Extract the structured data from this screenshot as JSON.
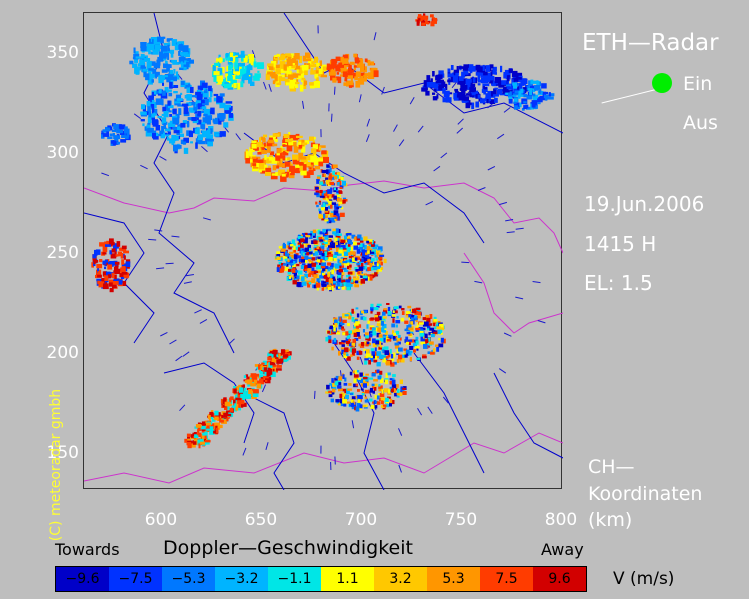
{
  "radar": {
    "title": "ETH—Radar",
    "status_on": "Ein",
    "status_off": "Aus",
    "date": "19.Jun.2006",
    "time": "1415 H",
    "elevation": "EL: 1.5",
    "coord_line1": "CH—",
    "coord_line2": "Koordinaten",
    "coord_line3": "(km)",
    "copyright": "(C) meteoradar gmbh",
    "status_dot_color": "#00ee00"
  },
  "axes": {
    "y_ticks": [
      "350",
      "300",
      "250",
      "200",
      "150"
    ],
    "x_ticks": [
      "600",
      "650",
      "700",
      "750",
      "800"
    ],
    "x_range": [
      562,
      800
    ],
    "y_range": [
      132,
      372
    ]
  },
  "legend": {
    "left_label": "Towards",
    "title": "Doppler—Geschwindigkeit",
    "right_label": "Away",
    "unit": "V  (m/s)",
    "bins": [
      {
        "label": "−9.6",
        "color": "#0000c8"
      },
      {
        "label": "−7.5",
        "color": "#0032ff"
      },
      {
        "label": "−5.3",
        "color": "#0078ff"
      },
      {
        "label": "−3.2",
        "color": "#00b4ff"
      },
      {
        "label": "−1.1",
        "color": "#00e6e6"
      },
      {
        "label": "1.1",
        "color": "#ffff00"
      },
      {
        "label": "3.2",
        "color": "#ffc800"
      },
      {
        "label": "5.3",
        "color": "#ff9600"
      },
      {
        "label": "7.5",
        "color": "#ff3c00"
      },
      {
        "label": "9.6",
        "color": "#d20000"
      }
    ]
  }
}
